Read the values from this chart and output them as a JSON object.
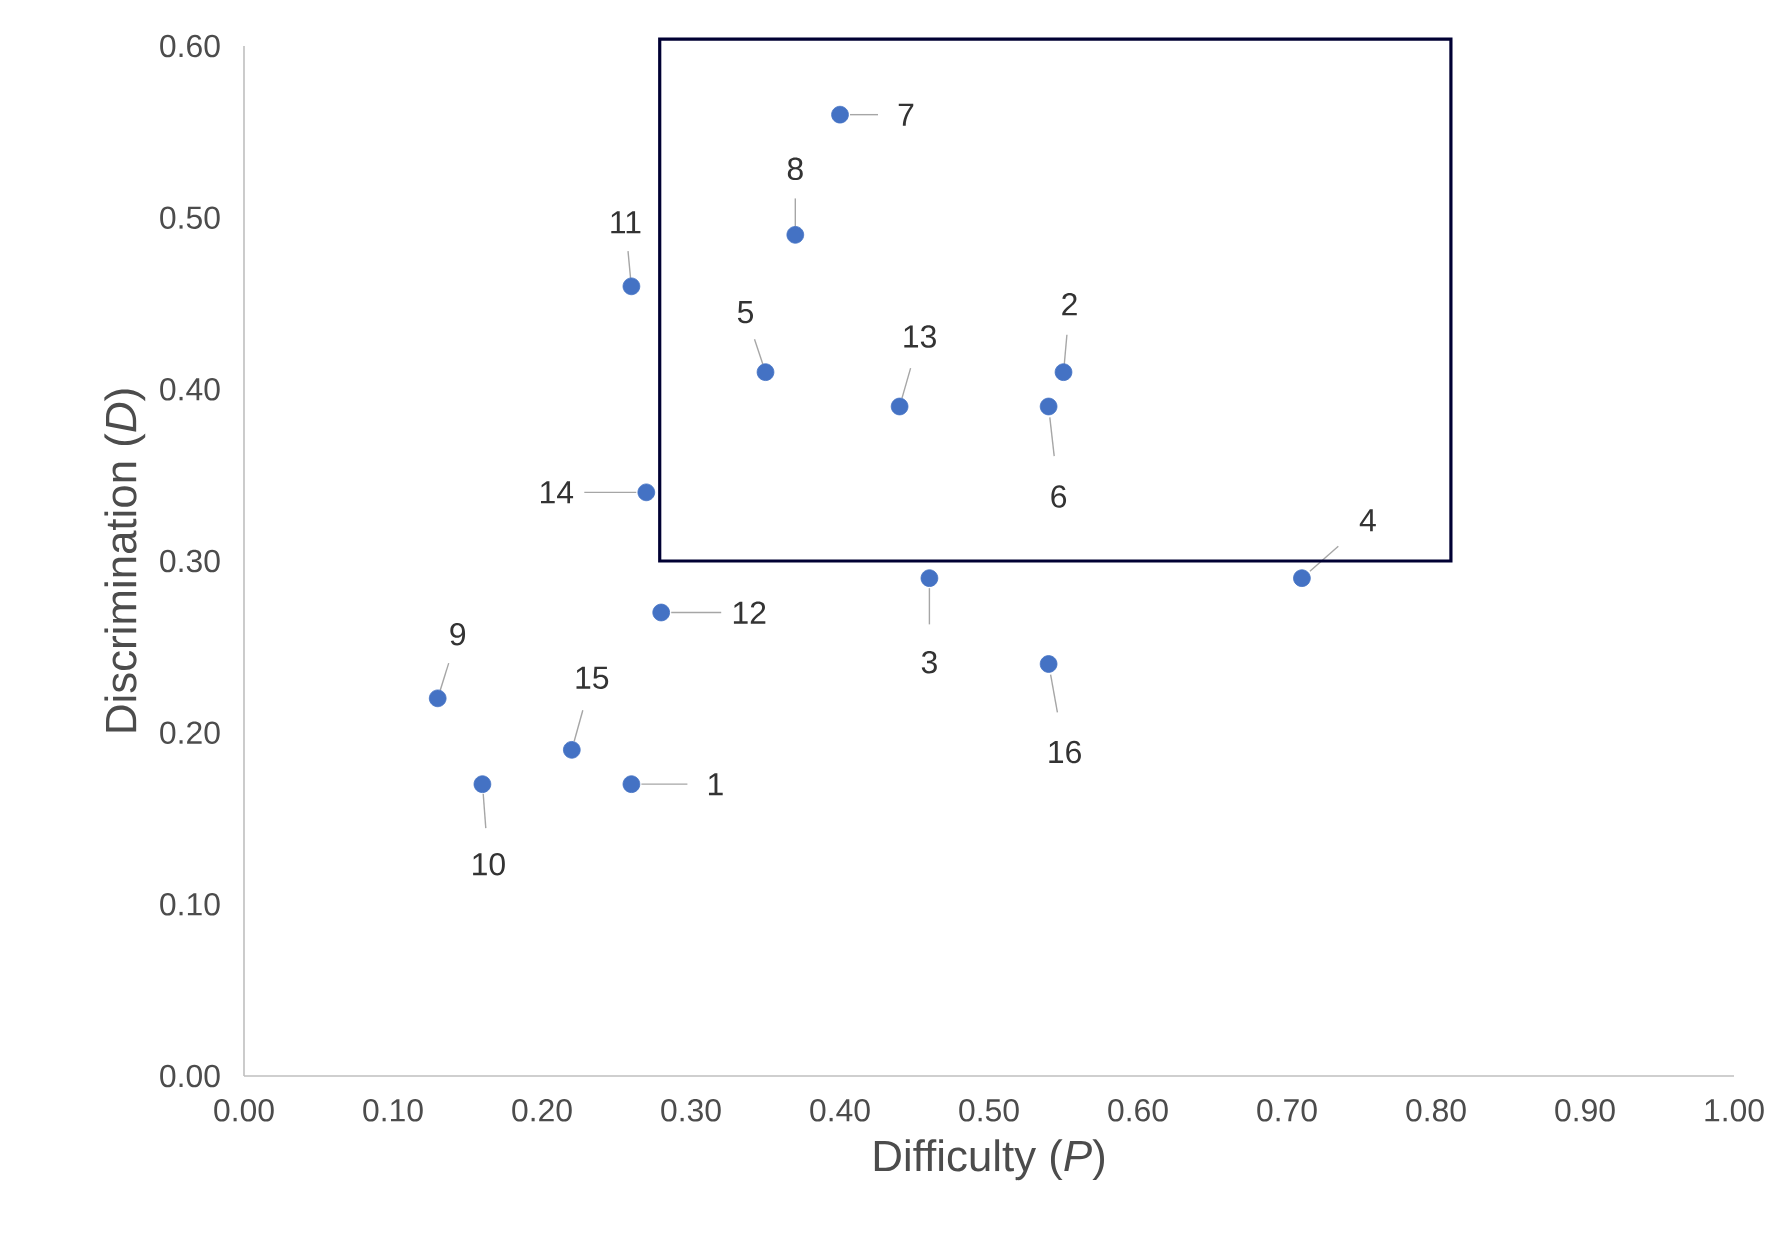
{
  "chart_data": {
    "type": "scatter",
    "xlabel": "Difficulty (*P*)",
    "ylabel": "Discrimination (*D*)",
    "x": [
      0.26,
      0.55,
      0.46,
      0.71,
      0.35,
      0.54,
      0.4,
      0.37,
      0.13,
      0.16,
      0.26,
      0.28,
      0.44,
      0.27,
      0.22,
      0.54
    ],
    "series": [
      {
        "color": "#4472c4",
        "values": [
          0.17,
          0.41,
          0.29,
          0.29,
          0.41,
          0.39,
          0.56,
          0.49,
          0.22,
          0.17,
          0.46,
          0.27,
          0.39,
          0.34,
          0.19,
          0.24
        ]
      }
    ],
    "xlim": [
      0,
      1
    ],
    "ylim": [
      0,
      0.6
    ],
    "xticks": [
      {
        "value": 0,
        "label": "0.00"
      },
      {
        "value": 0.1,
        "label": "0.10"
      },
      {
        "value": 0.2,
        "label": "0.20"
      },
      {
        "value": 0.3,
        "label": "0.30"
      },
      {
        "value": 0.4,
        "label": "0.40"
      },
      {
        "value": 0.5,
        "label": "0.50"
      },
      {
        "value": 0.6,
        "label": "0.60"
      },
      {
        "value": 0.7,
        "label": "0.70"
      },
      {
        "value": 0.8,
        "label": "0.80"
      },
      {
        "value": 0.9,
        "label": "0.90"
      },
      {
        "value": 1,
        "label": "1.00"
      }
    ],
    "yticks": [
      {
        "value": 0,
        "label": "0.00"
      },
      {
        "value": 0.1,
        "label": "0.10"
      },
      {
        "value": 0.2,
        "label": "0.20"
      },
      {
        "value": 0.3,
        "label": "0.30"
      },
      {
        "value": 0.4,
        "label": "0.40"
      },
      {
        "value": 0.5,
        "label": "0.50"
      },
      {
        "value": 0.6,
        "label": "0.60"
      }
    ],
    "marker": "circle",
    "annotations": [
      {
        "text": "1",
        "x": 0.26,
        "y": 0.17
      },
      {
        "text": "2",
        "x": 0.55,
        "y": 0.41
      },
      {
        "text": "3",
        "x": 0.46,
        "y": 0.29
      },
      {
        "text": "4",
        "x": 0.71,
        "y": 0.29
      },
      {
        "text": "5",
        "x": 0.35,
        "y": 0.41
      },
      {
        "text": "6",
        "x": 0.54,
        "y": 0.39
      },
      {
        "text": "7",
        "x": 0.4,
        "y": 0.56
      },
      {
        "text": "8",
        "x": 0.37,
        "y": 0.49
      },
      {
        "text": "9",
        "x": 0.13,
        "y": 0.22
      },
      {
        "text": "10",
        "x": 0.16,
        "y": 0.17
      },
      {
        "text": "11",
        "x": 0.26,
        "y": 0.46
      },
      {
        "text": "12",
        "x": 0.28,
        "y": 0.27
      },
      {
        "text": "13",
        "x": 0.44,
        "y": 0.39
      },
      {
        "text": "14",
        "x": 0.27,
        "y": 0.34
      },
      {
        "text": "15",
        "x": 0.22,
        "y": 0.19
      },
      {
        "text": "16",
        "x": 0.54,
        "y": 0.24
      }
    ]
  }
}
